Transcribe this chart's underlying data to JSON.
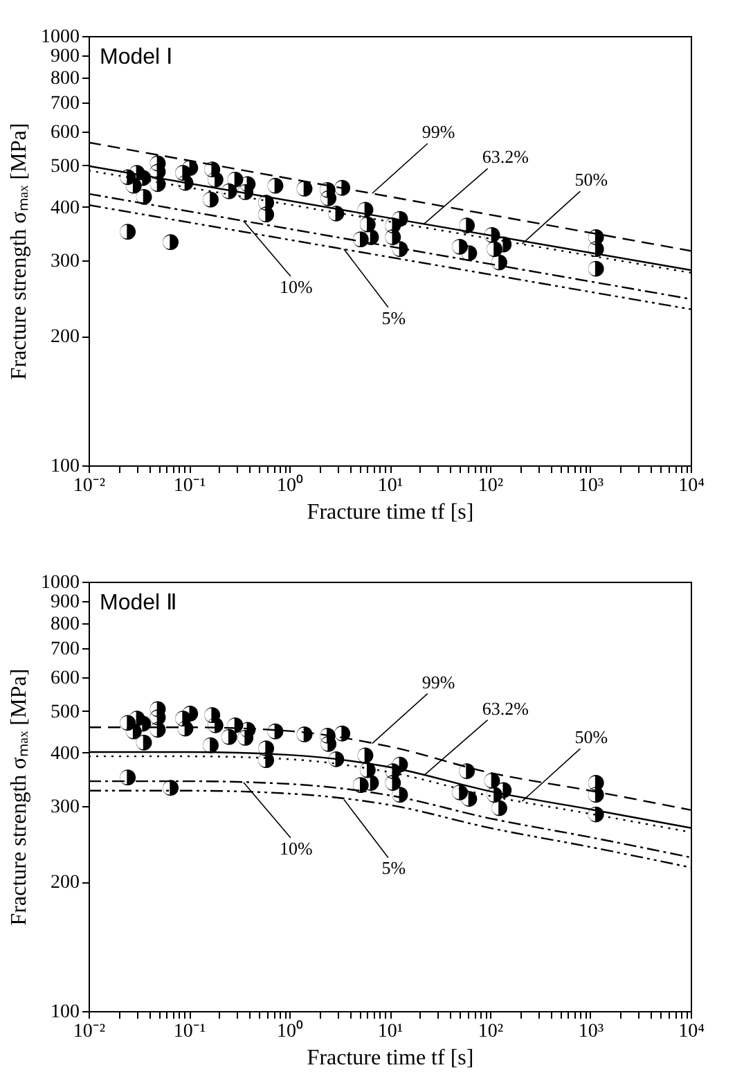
{
  "chart_data": [
    {
      "type": "scatter",
      "title": "Model Ⅰ",
      "xlabel": "Fracture time  tf [s]",
      "ylabel": "Fracture strength σₘₐₓ [MPa]",
      "log": "xy",
      "grid": false,
      "xlim": [
        0.01,
        10000
      ],
      "ylim": [
        100,
        1000
      ],
      "xticks": [
        {
          "value": 0.01,
          "label": "10⁻²"
        },
        {
          "value": 0.02,
          "label": null
        },
        {
          "value": 0.03,
          "label": null
        },
        {
          "value": 0.04,
          "label": null
        },
        {
          "value": 0.05,
          "label": null
        },
        {
          "value": 0.06,
          "label": null
        },
        {
          "value": 0.07,
          "label": null
        },
        {
          "value": 0.08,
          "label": null
        },
        {
          "value": 0.09,
          "label": null
        },
        {
          "value": 0.1,
          "label": "10⁻¹"
        },
        {
          "value": 0.2,
          "label": null
        },
        {
          "value": 0.3,
          "label": null
        },
        {
          "value": 0.4,
          "label": null
        },
        {
          "value": 0.5,
          "label": null
        },
        {
          "value": 0.6,
          "label": null
        },
        {
          "value": 0.7,
          "label": null
        },
        {
          "value": 0.8,
          "label": null
        },
        {
          "value": 0.9,
          "label": null
        },
        {
          "value": 1,
          "label": "10⁰"
        },
        {
          "value": 2,
          "label": null
        },
        {
          "value": 3,
          "label": null
        },
        {
          "value": 4,
          "label": null
        },
        {
          "value": 5,
          "label": null
        },
        {
          "value": 6,
          "label": null
        },
        {
          "value": 7,
          "label": null
        },
        {
          "value": 8,
          "label": null
        },
        {
          "value": 9,
          "label": null
        },
        {
          "value": 10,
          "label": "10¹"
        },
        {
          "value": 20,
          "label": null
        },
        {
          "value": 30,
          "label": null
        },
        {
          "value": 40,
          "label": null
        },
        {
          "value": 50,
          "label": null
        },
        {
          "value": 60,
          "label": null
        },
        {
          "value": 70,
          "label": null
        },
        {
          "value": 80,
          "label": null
        },
        {
          "value": 90,
          "label": null
        },
        {
          "value": 100,
          "label": "10²"
        },
        {
          "value": 200,
          "label": null
        },
        {
          "value": 300,
          "label": null
        },
        {
          "value": 400,
          "label": null
        },
        {
          "value": 500,
          "label": null
        },
        {
          "value": 600,
          "label": null
        },
        {
          "value": 700,
          "label": null
        },
        {
          "value": 800,
          "label": null
        },
        {
          "value": 900,
          "label": null
        },
        {
          "value": 1000,
          "label": "10³"
        },
        {
          "value": 2000,
          "label": null
        },
        {
          "value": 3000,
          "label": null
        },
        {
          "value": 4000,
          "label": null
        },
        {
          "value": 5000,
          "label": null
        },
        {
          "value": 6000,
          "label": null
        },
        {
          "value": 7000,
          "label": null
        },
        {
          "value": 8000,
          "label": null
        },
        {
          "value": 9000,
          "label": null
        },
        {
          "value": 10000,
          "label": "10⁴"
        }
      ],
      "yticks": [
        100,
        200,
        300,
        400,
        500,
        600,
        700,
        800,
        900,
        1000
      ],
      "series": [
        {
          "type": "line",
          "color": "#000000",
          "line_style": "dashed",
          "x": [
            0.01,
            10000
          ],
          "values": [
            565,
            316
          ]
        },
        {
          "type": "line",
          "color": "#000000",
          "line_style": "solid",
          "x": [
            0.01,
            10000
          ],
          "values": [
            498,
            285
          ]
        },
        {
          "type": "line",
          "color": "#000000",
          "line_style": "dotted",
          "x": [
            0.01,
            10000
          ],
          "values": [
            486,
            281
          ]
        },
        {
          "type": "line",
          "color": "#000000",
          "line_style": "dashdot",
          "x": [
            0.01,
            10000
          ],
          "values": [
            429,
            244
          ]
        },
        {
          "type": "line",
          "color": "#000000",
          "line_style": "dashdotdot",
          "x": [
            0.01,
            10000
          ],
          "values": [
            404,
            231
          ]
        },
        {
          "color": "#000000",
          "marker": "circle",
          "x": [
            0.0246,
            0.0282,
            0.0304,
            0.0349,
            0.0357,
            0.049,
            0.049,
            0.049,
            0.0877,
            0.0924,
            0.103,
            0.171,
            0.184,
            0.165,
            0.252,
            0.29,
            0.385,
            0.366,
            0.589,
            0.589,
            0.728,
            1.42,
            2.41,
            2.46,
            3.38,
            2.94,
            5.74,
            6.05,
            5.16,
            6.52,
            10.8,
            12.7,
            12.7,
            58.9,
            50.2,
            62.1,
            105,
            111,
            124,
            137,
            1140,
            1140,
            1140,
            0.0246,
            0.0658,
            10.8
          ],
          "values": [
            469,
            448,
            480,
            467,
            422,
            505,
            483,
            452,
            480,
            455,
            493,
            489,
            463,
            416,
            435,
            463,
            452,
            433,
            409,
            384,
            448,
            441,
            438,
            419,
            443,
            386,
            394,
            364,
            336,
            340,
            362,
            375,
            319,
            362,
            323,
            312,
            344,
            319,
            297,
            327,
            340,
            319,
            287,
            350,
            331,
            340
          ]
        }
      ],
      "annotations": [
        {
          "text": "99%",
          "x": 6.7,
          "y": 430
        },
        {
          "text": "63.2%",
          "x": 22,
          "y": 365
        },
        {
          "text": "50%",
          "x": 209,
          "y": 328
        },
        {
          "text": "10%",
          "x": 0.35,
          "y": 371
        },
        {
          "text": "5%",
          "x": 3.5,
          "y": 319
        }
      ]
    },
    {
      "type": "scatter",
      "title": "Model Ⅱ",
      "xlabel": "Fracture time  tf [s]",
      "ylabel": "Fracture strength σₘₐₓ [MPa]",
      "log": "xy",
      "grid": false,
      "xlim": [
        0.01,
        10000
      ],
      "ylim": [
        100,
        1000
      ],
      "xticks": [
        {
          "value": 0.01,
          "label": "10⁻²"
        },
        {
          "value": 0.02,
          "label": null
        },
        {
          "value": 0.03,
          "label": null
        },
        {
          "value": 0.04,
          "label": null
        },
        {
          "value": 0.05,
          "label": null
        },
        {
          "value": 0.06,
          "label": null
        },
        {
          "value": 0.07,
          "label": null
        },
        {
          "value": 0.08,
          "label": null
        },
        {
          "value": 0.09,
          "label": null
        },
        {
          "value": 0.1,
          "label": "10⁻¹"
        },
        {
          "value": 0.2,
          "label": null
        },
        {
          "value": 0.3,
          "label": null
        },
        {
          "value": 0.4,
          "label": null
        },
        {
          "value": 0.5,
          "label": null
        },
        {
          "value": 0.6,
          "label": null
        },
        {
          "value": 0.7,
          "label": null
        },
        {
          "value": 0.8,
          "label": null
        },
        {
          "value": 0.9,
          "label": null
        },
        {
          "value": 1,
          "label": "10⁰"
        },
        {
          "value": 2,
          "label": null
        },
        {
          "value": 3,
          "label": null
        },
        {
          "value": 4,
          "label": null
        },
        {
          "value": 5,
          "label": null
        },
        {
          "value": 6,
          "label": null
        },
        {
          "value": 7,
          "label": null
        },
        {
          "value": 8,
          "label": null
        },
        {
          "value": 9,
          "label": null
        },
        {
          "value": 10,
          "label": "10¹"
        },
        {
          "value": 20,
          "label": null
        },
        {
          "value": 30,
          "label": null
        },
        {
          "value": 40,
          "label": null
        },
        {
          "value": 50,
          "label": null
        },
        {
          "value": 60,
          "label": null
        },
        {
          "value": 70,
          "label": null
        },
        {
          "value": 80,
          "label": null
        },
        {
          "value": 90,
          "label": null
        },
        {
          "value": 100,
          "label": "10²"
        },
        {
          "value": 200,
          "label": null
        },
        {
          "value": 300,
          "label": null
        },
        {
          "value": 400,
          "label": null
        },
        {
          "value": 500,
          "label": null
        },
        {
          "value": 600,
          "label": null
        },
        {
          "value": 700,
          "label": null
        },
        {
          "value": 800,
          "label": null
        },
        {
          "value": 900,
          "label": null
        },
        {
          "value": 1000,
          "label": "10³"
        },
        {
          "value": 2000,
          "label": null
        },
        {
          "value": 3000,
          "label": null
        },
        {
          "value": 4000,
          "label": null
        },
        {
          "value": 5000,
          "label": null
        },
        {
          "value": 6000,
          "label": null
        },
        {
          "value": 7000,
          "label": null
        },
        {
          "value": 8000,
          "label": null
        },
        {
          "value": 9000,
          "label": null
        },
        {
          "value": 10000,
          "label": "10⁴"
        }
      ],
      "yticks": [
        100,
        200,
        300,
        400,
        500,
        600,
        700,
        800,
        900,
        1000
      ],
      "series": [
        {
          "type": "line",
          "color": "#000000",
          "line_style": "dashed",
          "x": [
            0.01,
            0.1,
            1,
            10,
            100,
            1000,
            10000
          ],
          "values": [
            458,
            458,
            449,
            413,
            359,
            326,
            294
          ]
        },
        {
          "type": "line",
          "color": "#000000",
          "line_style": "solid",
          "x": [
            0.01,
            0.1,
            1,
            10,
            100,
            1000,
            10000
          ],
          "values": [
            401,
            401,
            395,
            370,
            325,
            295,
            267
          ]
        },
        {
          "type": "line",
          "color": "#000000",
          "line_style": "dotted",
          "x": [
            0.01,
            0.1,
            1,
            10,
            100,
            1000,
            10000
          ],
          "values": [
            392,
            392,
            386,
            360,
            317,
            288,
            261
          ]
        },
        {
          "type": "line",
          "color": "#000000",
          "line_style": "dashdot",
          "x": [
            0.01,
            0.1,
            1,
            10,
            100,
            1000,
            10000
          ],
          "values": [
            343,
            343,
            338,
            318,
            281,
            254,
            228
          ]
        },
        {
          "type": "line",
          "color": "#000000",
          "line_style": "dashdotdot",
          "x": [
            0.01,
            0.1,
            1,
            10,
            100,
            1000,
            10000
          ],
          "values": [
            326,
            326,
            321,
            302,
            267,
            241,
            216
          ]
        },
        {
          "color": "#000000",
          "marker": "circle",
          "x": [
            0.0246,
            0.0282,
            0.0304,
            0.0349,
            0.0357,
            0.049,
            0.049,
            0.049,
            0.0877,
            0.0924,
            0.103,
            0.171,
            0.184,
            0.165,
            0.252,
            0.29,
            0.385,
            0.366,
            0.589,
            0.589,
            0.728,
            1.42,
            2.41,
            2.46,
            3.38,
            2.94,
            5.74,
            6.05,
            5.16,
            6.52,
            10.8,
            12.7,
            12.7,
            58.9,
            50.2,
            62.1,
            105,
            111,
            124,
            137,
            1140,
            1140,
            1140,
            0.0246,
            0.0658,
            10.8
          ],
          "values": [
            469,
            448,
            480,
            467,
            422,
            505,
            483,
            452,
            480,
            455,
            493,
            489,
            463,
            416,
            435,
            463,
            452,
            433,
            409,
            384,
            448,
            441,
            438,
            419,
            443,
            386,
            394,
            364,
            336,
            340,
            362,
            375,
            319,
            362,
            323,
            312,
            344,
            319,
            297,
            327,
            340,
            319,
            287,
            350,
            331,
            340
          ]
        }
      ],
      "annotations": [
        {
          "text": "99%",
          "x": 6.7,
          "y": 420
        },
        {
          "text": "63.2%",
          "x": 22,
          "y": 354
        },
        {
          "text": "50%",
          "x": 209,
          "y": 308
        },
        {
          "text": "10%",
          "x": 0.35,
          "y": 341
        },
        {
          "text": "5%",
          "x": 3.5,
          "y": 311
        }
      ]
    }
  ]
}
